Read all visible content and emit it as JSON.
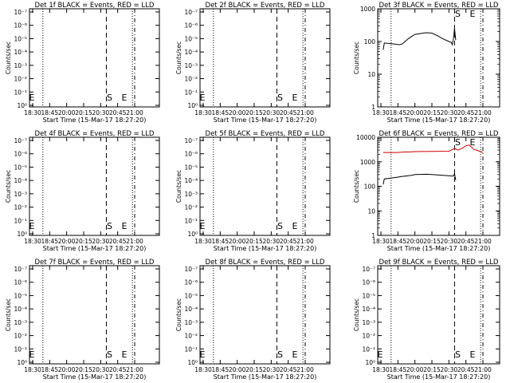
{
  "chart_data": {
    "type": "line",
    "time_labels": [
      "18:30",
      "18:45",
      "20:00",
      "20:15",
      "20:30",
      "20:45",
      "21:00"
    ],
    "x_title": "Start Time (15-Mar-17 18:27:20)",
    "y_title": "Counts/sec",
    "event_markers": {
      "start": {
        "label": "S",
        "time": "20:35"
      },
      "end": {
        "label": "E",
        "time": "20:48"
      }
    },
    "vertical_dotted_times": [
      "18:39",
      "20:58"
    ],
    "vertical_dashed_times": [
      "20:35",
      "21:00"
    ],
    "empty_panel_ticks": [
      "10⁻⁷",
      "10⁻⁶",
      "10⁻⁵",
      "10⁻⁴",
      "10⁻³",
      "10⁻²",
      "10⁻¹",
      "10⁰"
    ],
    "log_panel_ticks": [
      "1",
      "10",
      "100",
      "1000",
      "10000"
    ],
    "panels": [
      {
        "title": "Det 1f BLACK = Events, RED = LLD",
        "has_data": false
      },
      {
        "title": "Det 2f BLACK = Events, RED = LLD",
        "has_data": false
      },
      {
        "title": "Det 3f BLACK = Events, RED = LLD",
        "has_data": true,
        "ylim": [
          1,
          1000
        ],
        "series": [
          {
            "color": "#000000",
            "points": [
              [
                "18:32",
                55
              ],
              [
                "18:33",
                90
              ],
              [
                "18:40",
                85
              ],
              [
                "18:50",
                80
              ],
              [
                "19:00",
                82
              ],
              [
                "19:10",
                90
              ],
              [
                "19:20",
                105
              ],
              [
                "19:30",
                120
              ],
              [
                "19:40",
                135
              ],
              [
                "19:50",
                150
              ],
              [
                "20:00",
                165
              ],
              [
                "20:05",
                175
              ],
              [
                "20:10",
                185
              ],
              [
                "20:15",
                180
              ],
              [
                "20:20",
                150
              ],
              [
                "20:25",
                120
              ],
              [
                "20:30",
                100
              ],
              [
                "20:32",
                95
              ],
              [
                "20:33",
                80
              ],
              [
                "20:34",
                120
              ],
              [
                "20:35",
                250
              ],
              [
                "20:36",
                110
              ]
            ]
          }
        ]
      },
      {
        "title": "Det 4f BLACK = Events, RED = LLD",
        "has_data": false
      },
      {
        "title": "Det 5f BLACK = Events, RED = LLD",
        "has_data": false
      },
      {
        "title": "Det 6f BLACK = Events, RED = LLD",
        "has_data": true,
        "ylim": [
          1,
          10000
        ],
        "series": [
          {
            "color": "#cc0000",
            "points": [
              [
                "18:32",
                2400
              ],
              [
                "18:45",
                2400
              ],
              [
                "19:00",
                2450
              ],
              [
                "19:15",
                2500
              ],
              [
                "19:30",
                2500
              ],
              [
                "19:45",
                2550
              ],
              [
                "20:00",
                2600
              ],
              [
                "20:15",
                2650
              ],
              [
                "20:30",
                2700
              ],
              [
                "20:35",
                3500
              ],
              [
                "20:38",
                3000
              ],
              [
                "20:42",
                3600
              ],
              [
                "20:45",
                4500
              ],
              [
                "20:48",
                4800
              ],
              [
                "20:52",
                3200
              ],
              [
                "20:56",
                2800
              ],
              [
                "21:00",
                2400
              ]
            ]
          },
          {
            "color": "#000000",
            "points": [
              [
                "18:32",
                120
              ],
              [
                "18:33",
                200
              ],
              [
                "18:40",
                220
              ],
              [
                "18:50",
                240
              ],
              [
                "19:00",
                250
              ],
              [
                "19:15",
                260
              ],
              [
                "19:30",
                270
              ],
              [
                "19:45",
                280
              ],
              [
                "20:00",
                300
              ],
              [
                "20:10",
                310
              ],
              [
                "20:15",
                300
              ],
              [
                "20:25",
                280
              ],
              [
                "20:30",
                270
              ],
              [
                "20:34",
                260
              ],
              [
                "20:35",
                330
              ],
              [
                "20:36",
                180
              ]
            ]
          }
        ]
      },
      {
        "title": "Det 7f BLACK = Events, RED = LLD",
        "has_data": false
      },
      {
        "title": "Det 8f BLACK = Events, RED = LLD",
        "has_data": false
      },
      {
        "title": "Det 9f BLACK = Events, RED = LLD",
        "has_data": false
      }
    ]
  }
}
